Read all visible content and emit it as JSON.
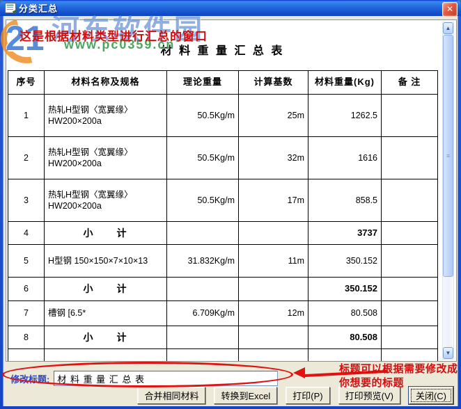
{
  "window": {
    "title": "分类汇总"
  },
  "icons": {
    "close": "✕",
    "scroll_up": "▲",
    "scroll_down": "▼",
    "thumb_grip": "≡"
  },
  "watermark": {
    "logo_text": "21",
    "site_name": "河东软件园",
    "site_url": "www.pc0359.cn"
  },
  "annotations": {
    "top_note": "这是根据材料类型进行汇总的窗口",
    "bottom_note_line1": "标题可以根据需要修改成",
    "bottom_note_line2": "你想要的标题"
  },
  "table": {
    "title": "材 料 重 量 汇 总 表",
    "columns": [
      "序号",
      "材料名称及规格",
      "理论重量",
      "计算基数",
      "材料重量(Kg)",
      "备  注"
    ],
    "rows": [
      {
        "kind": "item",
        "no": "1",
        "name": "热轧H型钢〈宽翼缘〉 HW200×200a",
        "unit_weight": "50.5Kg/m",
        "base": "25m",
        "weight": "1262.5",
        "note": ""
      },
      {
        "kind": "item",
        "no": "2",
        "name": "热轧H型钢〈宽翼缘〉 HW200×200a",
        "unit_weight": "50.5Kg/m",
        "base": "32m",
        "weight": "1616",
        "note": ""
      },
      {
        "kind": "item",
        "no": "3",
        "name": "热轧H型钢〈宽翼缘〉 HW200×200a",
        "unit_weight": "50.5Kg/m",
        "base": "17m",
        "weight": "858.5",
        "note": ""
      },
      {
        "kind": "subtotal",
        "no": "4",
        "name": "小　　计",
        "unit_weight": "",
        "base": "",
        "weight": "3737",
        "note": ""
      },
      {
        "kind": "item",
        "no": "5",
        "name": "H型钢 150×150×7×10×13",
        "unit_weight": "31.832Kg/m",
        "base": "11m",
        "weight": "350.152",
        "note": ""
      },
      {
        "kind": "subtotal",
        "no": "6",
        "name": "小　　计",
        "unit_weight": "",
        "base": "",
        "weight": "350.152",
        "note": ""
      },
      {
        "kind": "item",
        "no": "7",
        "name": "槽钢 [6.5*",
        "unit_weight": "6.709Kg/m",
        "base": "12m",
        "weight": "80.508",
        "note": ""
      },
      {
        "kind": "subtotal",
        "no": "8",
        "name": "小　　计",
        "unit_weight": "",
        "base": "",
        "weight": "80.508",
        "note": ""
      },
      {
        "kind": "empty",
        "no": "",
        "name": "",
        "unit_weight": "",
        "base": "",
        "weight": "",
        "note": ""
      }
    ]
  },
  "footer": {
    "modify_title_label": "修改标题:",
    "title_input_value": "材 料 重 量 汇 总 表",
    "buttons": [
      "合并相同材料",
      "转换到Excel",
      "打印(P)",
      "打印预览(V)",
      "关闭(C)"
    ]
  }
}
